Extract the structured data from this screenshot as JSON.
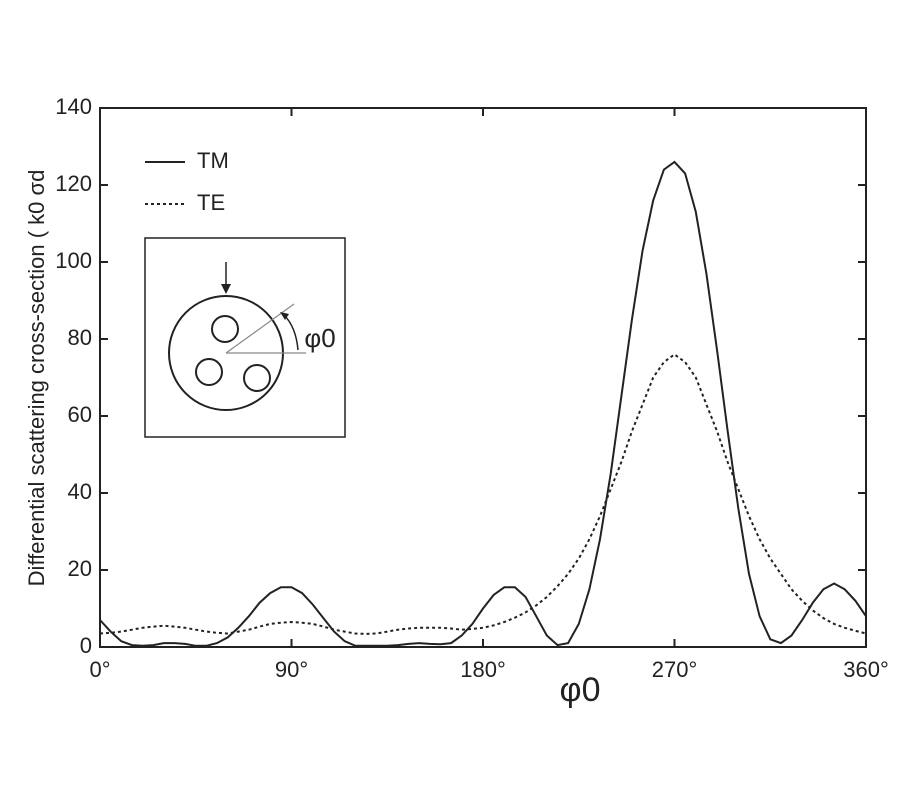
{
  "chart_data": {
    "type": "line",
    "ylabel": "Differential scattering cross-section ( k0 σd",
    "xlabel": "φ0",
    "inset_annotation": "φ0",
    "x": [
      0,
      5,
      10,
      15,
      20,
      25,
      30,
      35,
      40,
      45,
      50,
      55,
      60,
      65,
      70,
      75,
      80,
      85,
      90,
      95,
      100,
      105,
      110,
      115,
      120,
      125,
      130,
      135,
      140,
      145,
      150,
      155,
      160,
      165,
      170,
      175,
      180,
      185,
      190,
      195,
      200,
      205,
      210,
      215,
      220,
      225,
      230,
      235,
      240,
      245,
      250,
      255,
      260,
      265,
      270,
      275,
      280,
      285,
      290,
      295,
      300,
      305,
      310,
      315,
      320,
      325,
      330,
      335,
      340,
      345,
      350,
      355,
      360
    ],
    "series": [
      {
        "name": "TM",
        "color": "#222222",
        "linestyle": "solid",
        "values": [
          7,
          4,
          1.5,
          0.5,
          0.3,
          0.5,
          1,
          1,
          0.8,
          0.3,
          0.3,
          1,
          2.5,
          5,
          8,
          11.5,
          14,
          15.5,
          15.5,
          14,
          11,
          7.5,
          4,
          1.5,
          0.3,
          0.3,
          0.3,
          0.3,
          0.5,
          0.8,
          1,
          0.8,
          0.7,
          1,
          3,
          6,
          10,
          13.5,
          15.5,
          15.5,
          13,
          8,
          3,
          0.5,
          1,
          6,
          15,
          28,
          45,
          65,
          85,
          103,
          116,
          124,
          126,
          123,
          113,
          97,
          77,
          56,
          36,
          19,
          8,
          2,
          1,
          3,
          7,
          11.5,
          15,
          16.5,
          15,
          12,
          8
        ]
      },
      {
        "name": "TE",
        "color": "#222222",
        "linestyle": "dotted",
        "values": [
          3.5,
          3.7,
          4,
          4.5,
          5,
          5.3,
          5.5,
          5.3,
          5,
          4.5,
          4,
          3.7,
          3.5,
          4,
          4.5,
          5.3,
          6,
          6.3,
          6.5,
          6.3,
          6,
          5.3,
          4.5,
          4,
          3.5,
          3.4,
          3.5,
          4,
          4.5,
          4.8,
          5,
          5,
          5,
          4.8,
          4.5,
          4.7,
          5,
          5.6,
          6.5,
          7.6,
          9,
          10.8,
          13,
          15.8,
          19,
          23,
          28,
          34,
          41,
          48,
          56,
          63,
          70,
          74,
          76,
          74,
          70,
          63,
          56,
          48,
          41,
          34,
          28,
          23,
          19,
          15,
          12,
          9.5,
          7.5,
          6,
          5,
          4.2,
          3.5
        ]
      }
    ],
    "xlim": [
      0,
      360
    ],
    "xticks": [
      {
        "value": 0,
        "label": "0°"
      },
      {
        "value": 90,
        "label": "90°"
      },
      {
        "value": 180,
        "label": "180°"
      },
      {
        "value": 270,
        "label": "270°"
      },
      {
        "value": 360,
        "label": "360°"
      }
    ],
    "ylim": [
      0,
      140
    ],
    "yticks": [
      0,
      20,
      40,
      60,
      80,
      100,
      120,
      140
    ],
    "grid": false
  }
}
